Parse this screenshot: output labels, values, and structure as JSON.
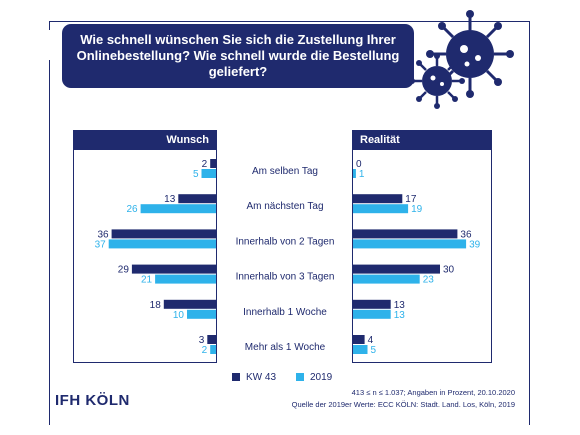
{
  "title": "Wie schnell wünschen Sie sich die Zustellung Ihrer Onlinebestellung? Wie schnell wurde die Bestellung geliefert?",
  "title_display": "Wie schnell wünschen Sie sich die Zustellung Ihrer\nOnlinebestellung? Wie schnell wurde die Bestellung\ngeliefert?",
  "panels": {
    "left": "Wunsch",
    "right": "Realität"
  },
  "legend": {
    "series1": "KW 43",
    "series2": "2019"
  },
  "footnote_line1": "413 ≤ n ≤ 1.037;  Angaben in Prozent, 20.10.2020",
  "footnote_line2": "Quelle der 2019er Werte: ECC KÖLN: Stadt. Land. Los, Köln, 2019",
  "logo": "IFH KÖLN",
  "icons": [
    "virus-icon"
  ],
  "colors": {
    "dark": "#1f2a6e",
    "light": "#2eb2ea"
  },
  "chart_data": {
    "type": "bar",
    "orientation": "horizontal",
    "categories": [
      "Am selben Tag",
      "Am nächsten Tag",
      "Innerhalb von 2 Tagen",
      "Innerhalb von 3 Tagen",
      "Innerhalb 1 Woche",
      "Mehr als 1 Woche"
    ],
    "panels": [
      {
        "name": "Wunsch",
        "series": [
          {
            "name": "KW 43",
            "values": [
              2,
              13,
              36,
              29,
              18,
              3
            ]
          },
          {
            "name": "2019",
            "values": [
              5,
              26,
              37,
              21,
              10,
              2
            ]
          }
        ]
      },
      {
        "name": "Realität",
        "series": [
          {
            "name": "KW 43",
            "values": [
              0,
              17,
              36,
              30,
              13,
              4
            ]
          },
          {
            "name": "2019",
            "values": [
              1,
              19,
              39,
              23,
              13,
              5
            ]
          }
        ]
      }
    ]
  }
}
